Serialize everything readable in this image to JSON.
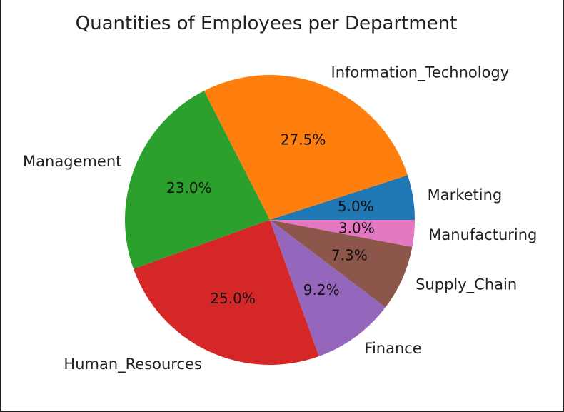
{
  "chart_data": {
    "type": "pie",
    "title": "Quantities of Employees per Department",
    "slices": [
      {
        "label": "Marketing",
        "value": 5.0,
        "pct_label": "5.0%",
        "color": "#1f77b4"
      },
      {
        "label": "Information_Technology",
        "value": 27.5,
        "pct_label": "27.5%",
        "color": "#ff7f0e"
      },
      {
        "label": "Management",
        "value": 23.0,
        "pct_label": "23.0%",
        "color": "#2ca02c"
      },
      {
        "label": "Human_Resources",
        "value": 25.0,
        "pct_label": "25.0%",
        "color": "#d62728"
      },
      {
        "label": "Finance",
        "value": 9.2,
        "pct_label": "9.2%",
        "color": "#9467bd"
      },
      {
        "label": "Supply_Chain",
        "value": 7.3,
        "pct_label": "7.3%",
        "color": "#8c564b"
      },
      {
        "label": "Manufacturing",
        "value": 3.0,
        "pct_label": "3.0%",
        "color": "#e377c2"
      }
    ],
    "start_angle_deg": 0,
    "direction": "counterclockwise",
    "legend": "none"
  }
}
